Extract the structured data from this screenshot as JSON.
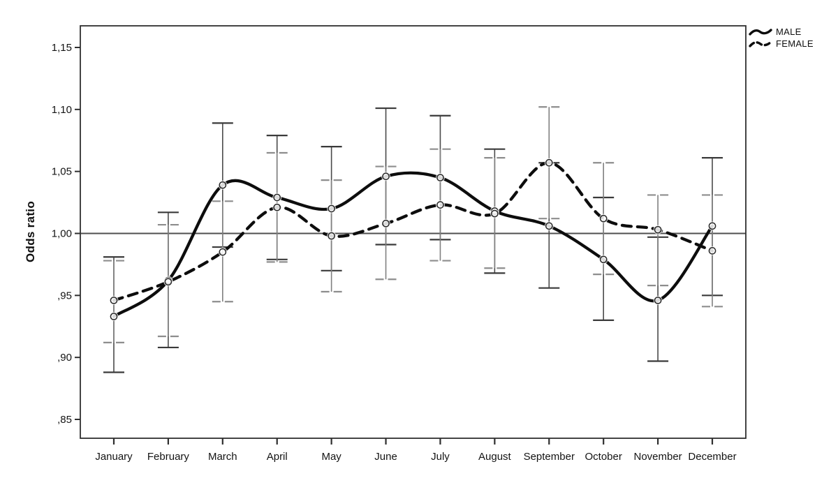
{
  "chart_data": {
    "type": "line",
    "title": "",
    "xlabel": "",
    "ylabel": "Odds ratio",
    "categories": [
      "January",
      "February",
      "March",
      "April",
      "May",
      "June",
      "July",
      "August",
      "September",
      "October",
      "November",
      "December"
    ],
    "y_ticks": [
      {
        "label": "1,15",
        "value": 1.15
      },
      {
        "label": "1,10",
        "value": 1.1
      },
      {
        "label": "1,05",
        "value": 1.05
      },
      {
        "label": "1,00",
        "value": 1.0
      },
      {
        "label": ",95",
        "value": 0.95
      },
      {
        "label": ",90",
        "value": 0.9
      },
      {
        "label": ",85",
        "value": 0.85
      }
    ],
    "ylim": [
      0.835,
      1.167
    ],
    "grid": false,
    "reference_line": 1.0,
    "legend_position": "top-right",
    "series": [
      {
        "name": "MALE",
        "line_style": "solid",
        "values": [
          0.933,
          0.962,
          1.039,
          1.029,
          1.02,
          1.046,
          1.045,
          1.018,
          1.006,
          0.979,
          0.946,
          1.006
        ],
        "ci_low": [
          0.888,
          0.908,
          0.989,
          0.979,
          0.97,
          0.991,
          0.995,
          0.968,
          0.956,
          0.93,
          0.897,
          0.95
        ],
        "ci_high": [
          0.981,
          1.017,
          1.089,
          1.079,
          1.07,
          1.101,
          1.095,
          1.068,
          1.057,
          1.029,
          0.997,
          1.061
        ]
      },
      {
        "name": "FEMALE",
        "line_style": "dashed",
        "values": [
          0.946,
          0.961,
          0.985,
          1.021,
          0.998,
          1.008,
          1.023,
          1.016,
          1.057,
          1.012,
          1.003,
          0.986
        ],
        "ci_low": [
          0.912,
          0.917,
          0.945,
          0.977,
          0.953,
          0.963,
          0.978,
          0.972,
          1.012,
          0.967,
          0.958,
          0.941
        ],
        "ci_high": [
          0.978,
          1.007,
          1.026,
          1.065,
          1.043,
          1.054,
          1.068,
          1.061,
          1.102,
          1.057,
          1.031,
          1.031
        ]
      }
    ],
    "colors": {
      "line": "#0d0d0d",
      "axis": "#2f2f2f",
      "text": "#141414",
      "reference": "#4f4f4f",
      "error_bar_male": "#4a4a4a",
      "error_bar_female": "#808080",
      "cap_male": "#3a3a3a",
      "cap_female": "#8d8d8d",
      "marker": "#2b2b2b",
      "background": "#ffffff"
    }
  }
}
